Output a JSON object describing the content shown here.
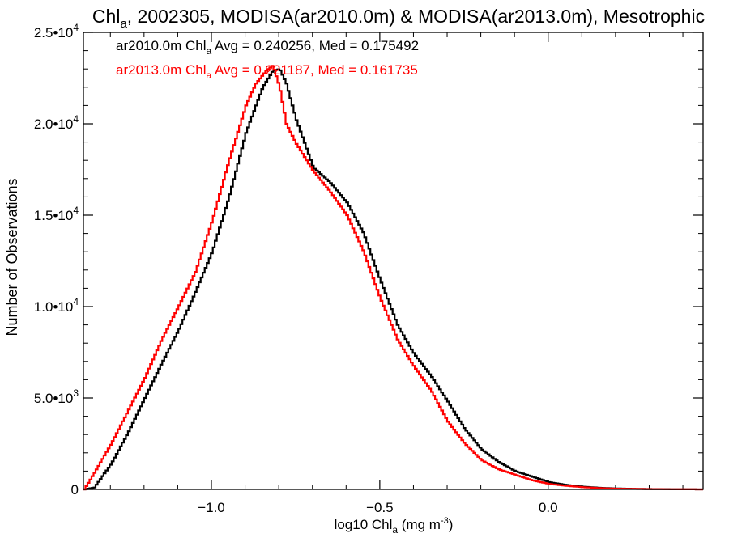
{
  "chart_data": {
    "type": "line",
    "title_prefix": "Chl",
    "title_sub": "a",
    "title_suffix": ", 2002305, MODISA(ar2010.0m) & MODISA(ar2013.0m), Mesotrophic",
    "xlabel_prefix": "log10 Chl",
    "xlabel_sub": "a",
    "xlabel_mid": " (mg m",
    "xlabel_sup": "-3",
    "xlabel_suffix": ")",
    "ylabel": "Number of Observations",
    "xlim": [
      -1.38,
      0.46
    ],
    "ylim": [
      0,
      25000
    ],
    "x_ticks": [
      {
        "value": -1.0,
        "label": "−1.0"
      },
      {
        "value": -0.5,
        "label": "−0.5"
      },
      {
        "value": 0.0,
        "label": "0.0"
      }
    ],
    "y_ticks": [
      {
        "value": 0,
        "mant": "0",
        "exp": ""
      },
      {
        "value": 5000,
        "mant": "5.0•10",
        "exp": "3"
      },
      {
        "value": 10000,
        "mant": "1.0•10",
        "exp": "4"
      },
      {
        "value": 15000,
        "mant": "1.5•10",
        "exp": "4"
      },
      {
        "value": 20000,
        "mant": "2.0•10",
        "exp": "4"
      },
      {
        "value": 25000,
        "mant": "2.5•10",
        "exp": "4"
      }
    ],
    "annotations": [
      {
        "color": "#000000",
        "prefix": "ar2010.0m Chl",
        "sub": "a",
        "suffix": " Avg = 0.240256, Med = 0.175492"
      },
      {
        "color": "#ff0000",
        "prefix": "ar2013.0m Chl",
        "sub": "a",
        "suffix": " Avg = 0.221187, Med = 0.161735"
      }
    ],
    "series": [
      {
        "color": "#000000",
        "x": [
          -1.38,
          -1.35,
          -1.3,
          -1.25,
          -1.2,
          -1.15,
          -1.1,
          -1.05,
          -1.0,
          -0.95,
          -0.9,
          -0.85,
          -0.82,
          -0.8,
          -0.78,
          -0.75,
          -0.7,
          -0.65,
          -0.6,
          -0.55,
          -0.5,
          -0.45,
          -0.4,
          -0.35,
          -0.3,
          -0.25,
          -0.2,
          -0.15,
          -0.1,
          -0.05,
          0.0,
          0.05,
          0.1,
          0.15,
          0.2,
          0.3,
          0.4,
          0.46
        ],
        "y": [
          0,
          100,
          1400,
          3100,
          5000,
          6900,
          8700,
          10800,
          13000,
          16000,
          19500,
          22000,
          22900,
          23000,
          22200,
          20200,
          17600,
          16800,
          15700,
          14000,
          11400,
          9000,
          7400,
          6200,
          4800,
          3300,
          2200,
          1500,
          1000,
          700,
          400,
          250,
          150,
          90,
          50,
          20,
          5,
          0
        ]
      },
      {
        "color": "#ff0000",
        "x": [
          -1.38,
          -1.35,
          -1.3,
          -1.25,
          -1.2,
          -1.15,
          -1.1,
          -1.05,
          -1.0,
          -0.95,
          -0.9,
          -0.87,
          -0.84,
          -0.82,
          -0.8,
          -0.78,
          -0.75,
          -0.7,
          -0.65,
          -0.6,
          -0.55,
          -0.5,
          -0.45,
          -0.4,
          -0.35,
          -0.3,
          -0.25,
          -0.2,
          -0.15,
          -0.1,
          -0.05,
          0.0,
          0.05,
          0.1,
          0.15,
          0.2,
          0.3,
          0.4,
          0.46
        ],
        "y": [
          0,
          900,
          2500,
          4300,
          6100,
          8200,
          10000,
          11900,
          14700,
          18000,
          21000,
          22200,
          22900,
          23200,
          22000,
          20000,
          18900,
          17400,
          16300,
          15000,
          13000,
          10400,
          8200,
          6700,
          5400,
          3700,
          2500,
          1600,
          1100,
          800,
          500,
          300,
          200,
          120,
          70,
          40,
          15,
          5,
          0
        ]
      }
    ],
    "grid": false,
    "legend": "top-left"
  }
}
